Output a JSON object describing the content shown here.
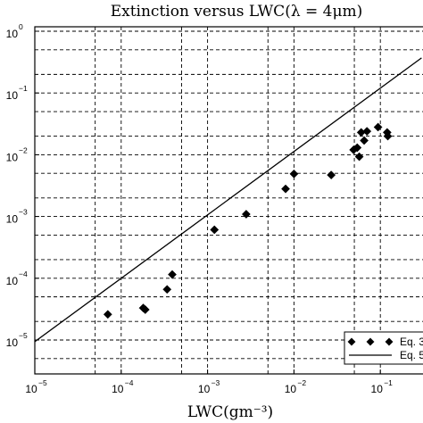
{
  "chart_data": {
    "type": "scatter",
    "title": "Extinction versus LWC(λ = 4μm)",
    "xlabel": "LWC(gm⁻³)",
    "ylabel": "",
    "x_scale": "log",
    "y_scale": "log",
    "xlim": [
      1e-05,
      0.3
    ],
    "ylim": [
      5e-06,
      1
    ],
    "grid": true,
    "grid_style": "dashed",
    "legend_position": "bottom-right",
    "x_ticks": [
      {
        "base": "10",
        "exp": "−5",
        "value": 1e-05
      },
      {
        "base": "10",
        "exp": "−4",
        "value": 0.0001
      },
      {
        "base": "10",
        "exp": "−3",
        "value": 0.001
      },
      {
        "base": "10",
        "exp": "−2",
        "value": 0.01
      },
      {
        "base": "10",
        "exp": "−1",
        "value": 0.1
      }
    ],
    "y_ticks": [
      {
        "base": "10",
        "exp": "0",
        "value": 1
      },
      {
        "base": "10",
        "exp": "−1",
        "value": 0.1
      },
      {
        "base": "10",
        "exp": "−2",
        "value": 0.01
      },
      {
        "base": "10",
        "exp": "−3",
        "value": 0.001
      },
      {
        "base": "10",
        "exp": "−4",
        "value": 0.0001
      },
      {
        "base": "10",
        "exp": "−5",
        "value": 1e-05
      }
    ],
    "series": [
      {
        "name": "Eq. 3",
        "style": "markers",
        "marker": "diamond",
        "color": "#000000",
        "points": [
          {
            "x": 7e-05,
            "y": 2.6e-05
          },
          {
            "x": 0.00018,
            "y": 3.3e-05
          },
          {
            "x": 0.00019,
            "y": 3.1e-05
          },
          {
            "x": 0.00034,
            "y": 6.6e-05
          },
          {
            "x": 0.00039,
            "y": 0.000115
          },
          {
            "x": 0.0012,
            "y": 0.00061
          },
          {
            "x": 0.0028,
            "y": 0.00109
          },
          {
            "x": 0.008,
            "y": 0.0028
          },
          {
            "x": 0.01,
            "y": 0.0049
          },
          {
            "x": 0.027,
            "y": 0.0047
          },
          {
            "x": 0.049,
            "y": 0.012
          },
          {
            "x": 0.054,
            "y": 0.013
          },
          {
            "x": 0.057,
            "y": 0.0093
          },
          {
            "x": 0.06,
            "y": 0.023
          },
          {
            "x": 0.065,
            "y": 0.017
          },
          {
            "x": 0.07,
            "y": 0.024
          },
          {
            "x": 0.094,
            "y": 0.028
          },
          {
            "x": 0.12,
            "y": 0.023
          },
          {
            "x": 0.122,
            "y": 0.02
          }
        ]
      },
      {
        "name": "Eq. 5",
        "style": "line",
        "color": "#000000",
        "points": [
          {
            "x": 1e-05,
            "y": 9.4e-06
          },
          {
            "x": 0.3,
            "y": 0.37
          }
        ]
      }
    ]
  }
}
